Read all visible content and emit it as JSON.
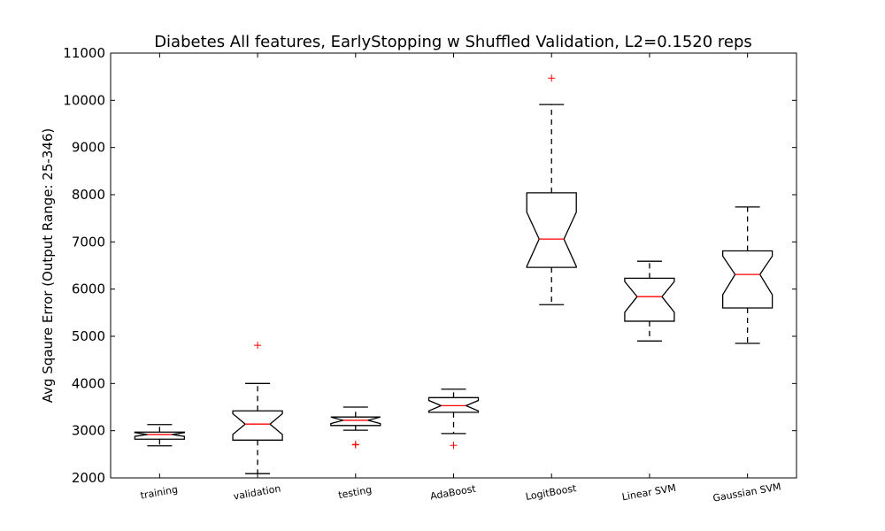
{
  "chart_data": {
    "type": "box",
    "title": "Diabetes All features, EarlyStopping w Shuffled Validation, L2=0.1520 reps",
    "xlabel": "",
    "ylabel": "Avg Sqaure Error (Output Range: 25-346)",
    "ylim": [
      2000,
      11000
    ],
    "yticks": [
      "2000",
      "3000",
      "4000",
      "5000",
      "6000",
      "7000",
      "8000",
      "9000",
      "10000",
      "11000"
    ],
    "notched": true,
    "colors": {
      "box": "#000000",
      "median": "#ff0000",
      "outlier": "#ff0000"
    },
    "categories": [
      "training",
      "validation",
      "testing",
      "AdaBoost",
      "LogitBoost",
      "Linear SVM",
      "Gaussian SVM"
    ],
    "boxes": [
      {
        "whisker_low": 2680,
        "q1": 2820,
        "median": 2920,
        "q3": 2970,
        "whisker_high": 3130,
        "notch_low": 2880,
        "notch_high": 2960,
        "outliers": []
      },
      {
        "whisker_low": 2090,
        "q1": 2800,
        "median": 3140,
        "q3": 3420,
        "whisker_high": 4000,
        "notch_low": 2920,
        "notch_high": 3360,
        "outliers": [
          4810
        ]
      },
      {
        "whisker_low": 3010,
        "q1": 3110,
        "median": 3220,
        "q3": 3290,
        "whisker_high": 3500,
        "notch_low": 3150,
        "notch_high": 3290,
        "outliers": [
          2700,
          2710
        ]
      },
      {
        "whisker_low": 2940,
        "q1": 3390,
        "median": 3530,
        "q3": 3700,
        "whisker_high": 3880,
        "notch_low": 3420,
        "notch_high": 3640,
        "outliers": [
          2690
        ]
      },
      {
        "whisker_low": 5670,
        "q1": 6460,
        "median": 7060,
        "q3": 8040,
        "whisker_high": 9910,
        "notch_low": 6480,
        "notch_high": 7630,
        "outliers": [
          10470
        ]
      },
      {
        "whisker_low": 4900,
        "q1": 5320,
        "median": 5840,
        "q3": 6230,
        "whisker_high": 6590,
        "notch_low": 5510,
        "notch_high": 6160,
        "outliers": []
      },
      {
        "whisker_low": 4850,
        "q1": 5600,
        "median": 6310,
        "q3": 6810,
        "whisker_high": 7740,
        "notch_low": 5880,
        "notch_high": 6700,
        "outliers": []
      }
    ]
  }
}
